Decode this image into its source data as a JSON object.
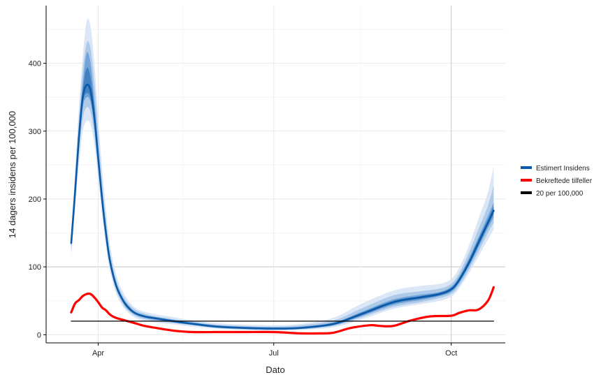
{
  "chart_data": {
    "type": "line",
    "title": "",
    "xlabel": "Dato",
    "ylabel": "14 dagers insidens per 100,000",
    "xlim": [
      "2020-03-05",
      "2020-10-29"
    ],
    "ylim": [
      -12,
      485
    ],
    "x_ticks": [
      {
        "date": "2020-04-01",
        "label": "Apr"
      },
      {
        "date": "2020-07-01",
        "label": "Jul"
      },
      {
        "date": "2020-10-01",
        "label": "Oct"
      }
    ],
    "y_ticks": [
      0,
      100,
      200,
      300,
      400
    ],
    "grid": true,
    "legend_position": "right",
    "colors": {
      "estimate": "#0b5aa7",
      "band_inner": "#3e7fc1",
      "band_mid": "#6b9fd4",
      "band_outer": "#a9c6e8",
      "band_outermost": "#d7e3f5",
      "confirmed": "#ff0000",
      "threshold": "#000000"
    },
    "series": [
      {
        "name": "Estimert Insidens",
        "x": [
          "2020-03-18",
          "2020-03-20",
          "2020-03-22",
          "2020-03-24",
          "2020-03-26",
          "2020-03-28",
          "2020-03-30",
          "2020-04-01",
          "2020-04-03",
          "2020-04-05",
          "2020-04-07",
          "2020-04-10",
          "2020-04-13",
          "2020-04-16",
          "2020-04-20",
          "2020-04-25",
          "2020-05-01",
          "2020-05-10",
          "2020-05-20",
          "2020-06-01",
          "2020-06-15",
          "2020-07-01",
          "2020-07-15",
          "2020-08-01",
          "2020-08-15",
          "2020-09-01",
          "2020-09-15",
          "2020-09-25",
          "2020-10-01",
          "2020-10-05",
          "2020-10-10",
          "2020-10-15",
          "2020-10-20",
          "2020-10-23"
        ],
        "y": [
          135,
          210,
          290,
          350,
          368,
          360,
          320,
          260,
          200,
          150,
          110,
          75,
          55,
          42,
          32,
          27,
          24,
          20,
          16,
          12,
          10,
          9,
          10,
          16,
          30,
          48,
          55,
          60,
          67,
          80,
          105,
          135,
          165,
          183
        ]
      },
      {
        "name": "Bekreftede tilfeller",
        "x": [
          "2020-03-18",
          "2020-03-20",
          "2020-03-22",
          "2020-03-24",
          "2020-03-26",
          "2020-03-28",
          "2020-03-30",
          "2020-04-01",
          "2020-04-03",
          "2020-04-05",
          "2020-04-07",
          "2020-04-10",
          "2020-04-15",
          "2020-04-20",
          "2020-04-25",
          "2020-05-01",
          "2020-05-10",
          "2020-05-20",
          "2020-06-01",
          "2020-06-15",
          "2020-07-01",
          "2020-07-15",
          "2020-07-25",
          "2020-08-01",
          "2020-08-10",
          "2020-08-20",
          "2020-08-25",
          "2020-09-01",
          "2020-09-10",
          "2020-09-20",
          "2020-10-01",
          "2020-10-05",
          "2020-10-10",
          "2020-10-15",
          "2020-10-20",
          "2020-10-23"
        ],
        "y": [
          33,
          46,
          51,
          57,
          60,
          60,
          55,
          48,
          40,
          36,
          30,
          25,
          21,
          17,
          13,
          10,
          6,
          4,
          4,
          4,
          4,
          2,
          2,
          3,
          10,
          14,
          13,
          13,
          21,
          27,
          28,
          32,
          36,
          37,
          50,
          70
        ]
      },
      {
        "name": "20 per 100,000",
        "x": [
          "2020-03-18",
          "2020-10-23"
        ],
        "y": [
          20,
          20
        ]
      }
    ],
    "bands": {
      "x": [
        "2020-03-18",
        "2020-03-20",
        "2020-03-22",
        "2020-03-24",
        "2020-03-26",
        "2020-03-28",
        "2020-03-30",
        "2020-04-01",
        "2020-04-03",
        "2020-04-05",
        "2020-04-07",
        "2020-04-10",
        "2020-04-13",
        "2020-04-16",
        "2020-04-20",
        "2020-04-25",
        "2020-05-01",
        "2020-05-10",
        "2020-05-20",
        "2020-06-01",
        "2020-06-15",
        "2020-07-01",
        "2020-07-15",
        "2020-08-01",
        "2020-08-15",
        "2020-09-01",
        "2020-09-15",
        "2020-09-25",
        "2020-10-01",
        "2020-10-05",
        "2020-10-10",
        "2020-10-15",
        "2020-10-20",
        "2020-10-23"
      ],
      "outermost": {
        "lower": [
          115,
          185,
          250,
          300,
          315,
          310,
          280,
          230,
          175,
          130,
          95,
          63,
          45,
          34,
          25,
          20,
          18,
          15,
          12,
          9,
          7,
          6,
          7,
          11,
          22,
          38,
          45,
          50,
          56,
          68,
          90,
          115,
          140,
          155
        ],
        "upper": [
          152,
          240,
          335,
          410,
          462,
          455,
          400,
          320,
          245,
          185,
          135,
          92,
          68,
          53,
          40,
          34,
          30,
          26,
          21,
          17,
          15,
          14,
          16,
          25,
          45,
          65,
          72,
          75,
          82,
          98,
          130,
          170,
          210,
          248
        ]
      },
      "outer": {
        "lower": [
          122,
          195,
          265,
          318,
          335,
          328,
          295,
          243,
          186,
          139,
          102,
          68,
          49,
          37,
          28,
          23,
          20,
          17,
          14,
          10,
          8,
          7,
          8,
          13,
          25,
          41,
          48,
          54,
          60,
          72,
          95,
          122,
          150,
          165
        ],
        "upper": [
          145,
          228,
          318,
          388,
          430,
          422,
          372,
          298,
          226,
          170,
          124,
          84,
          62,
          48,
          37,
          31,
          27,
          23,
          19,
          15,
          13,
          12,
          14,
          21,
          38,
          58,
          64,
          68,
          75,
          90,
          120,
          155,
          190,
          220
        ]
      },
      "mid": {
        "lower": [
          128,
          202,
          278,
          335,
          350,
          343,
          307,
          251,
          192,
          144,
          106,
          71,
          52,
          39,
          30,
          25,
          22,
          18,
          15,
          11,
          9,
          8,
          9,
          14,
          27,
          44,
          51,
          57,
          63,
          76,
          100,
          128,
          157,
          173
        ],
        "upper": [
          140,
          220,
          304,
          370,
          415,
          400,
          345,
          278,
          212,
          159,
          116,
          80,
          58,
          45,
          34,
          29,
          26,
          22,
          18,
          14,
          12,
          11,
          12,
          18,
          33,
          52,
          59,
          63,
          71,
          85,
          112,
          143,
          175,
          195
        ]
      },
      "inner": {
        "lower": [
          131,
          205,
          284,
          342,
          356,
          348,
          312,
          255,
          196,
          147,
          108,
          73,
          53,
          40,
          31,
          26,
          23,
          19,
          15,
          11,
          9,
          8,
          9,
          15,
          28,
          46,
          53,
          58,
          65,
          78,
          102,
          131,
          161,
          178
        ],
        "upper": [
          138,
          215,
          297,
          360,
          393,
          380,
          335,
          270,
          206,
          155,
          113,
          78,
          57,
          44,
          33,
          28,
          25,
          21,
          17,
          13,
          11,
          10,
          11,
          17,
          32,
          50,
          57,
          62,
          69,
          83,
          109,
          140,
          170,
          190
        ]
      }
    }
  }
}
